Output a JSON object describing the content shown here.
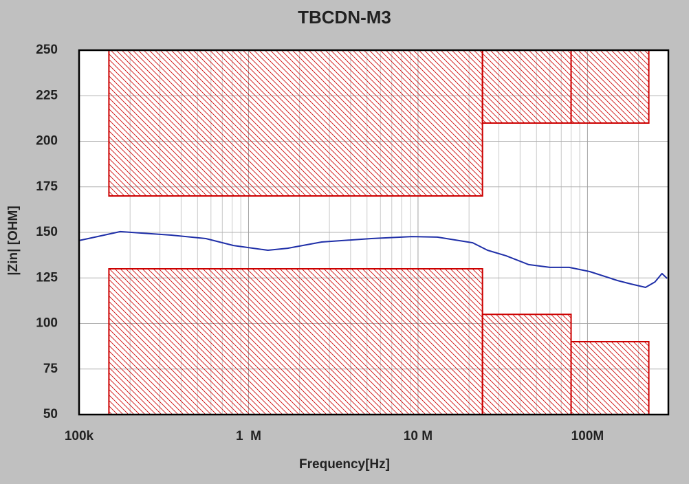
{
  "chart_data": {
    "type": "line",
    "title": "TBCDN-M3",
    "x_label": "Frequency[Hz]",
    "y_label": "|Zin| [OHM]",
    "x_scale": "log",
    "grid": true,
    "minor_grid": true,
    "xlim": [
      100000,
      300000000
    ],
    "ylim": [
      50,
      250
    ],
    "xticks": [
      {
        "value": 100000,
        "label": "100k"
      },
      {
        "value": 1000000,
        "label": "1  M"
      },
      {
        "value": 10000000,
        "label": "10 M"
      },
      {
        "value": 100000000,
        "label": "100M"
      }
    ],
    "yticks": [
      50,
      75,
      100,
      125,
      150,
      175,
      200,
      225,
      250
    ],
    "series": [
      {
        "color": "#1f2fa8",
        "x": [
          100000,
          175000,
          350000,
          560000,
          815000,
          1300000,
          1700000,
          2700000,
          5300000,
          9200000,
          13000000,
          21000000,
          25700000,
          33000000,
          45000000,
          60000000,
          78000000,
          103000000,
          150000000,
          180000000,
          220000000,
          250000000,
          275000000,
          295000000
        ],
        "values": [
          145.5,
          150.4,
          148.5,
          146.6,
          142.8,
          140.2,
          141.3,
          144.7,
          146.6,
          147.7,
          147.4,
          144.3,
          140.2,
          137.2,
          132.3,
          130.8,
          130.8,
          128.5,
          123.6,
          121.7,
          119.8,
          122.8,
          127.4,
          124.7
        ]
      }
    ],
    "limit_color": "#cc0000",
    "limit_regions": [
      {
        "xrange": [
          150000,
          24000000
        ],
        "yrange": [
          170,
          250
        ]
      },
      {
        "xrange": [
          150000,
          24000000
        ],
        "yrange": [
          50,
          130
        ]
      },
      {
        "xrange": [
          24000000,
          80000000
        ],
        "yrange": [
          210,
          250
        ]
      },
      {
        "xrange": [
          24000000,
          80000000
        ],
        "yrange": [
          50,
          105
        ]
      },
      {
        "xrange": [
          80000000,
          230000000
        ],
        "yrange": [
          210,
          250
        ]
      },
      {
        "xrange": [
          80000000,
          230000000
        ],
        "yrange": [
          50,
          90
        ]
      }
    ]
  }
}
